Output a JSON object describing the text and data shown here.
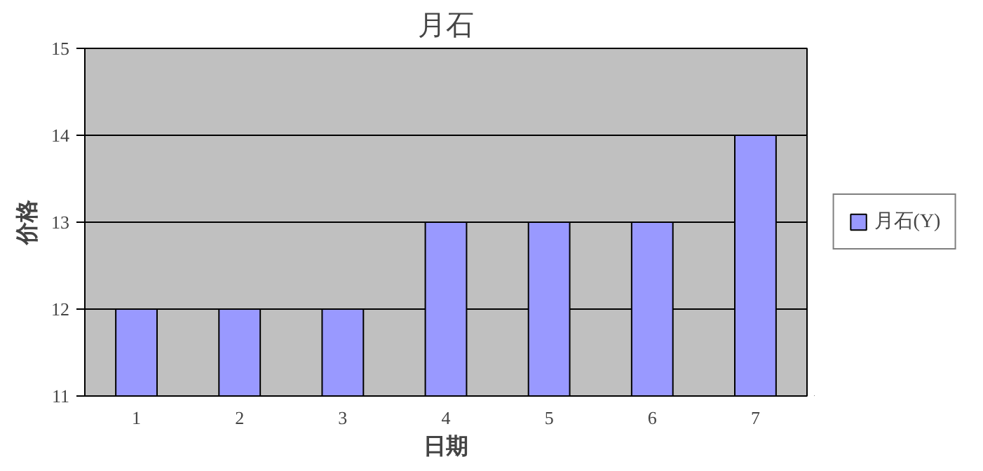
{
  "chart_data": {
    "type": "bar",
    "title": "月石",
    "xlabel": "日期",
    "ylabel": "价格",
    "categories": [
      "1",
      "2",
      "3",
      "4",
      "5",
      "6",
      "7"
    ],
    "series": [
      {
        "name": "月石(Y)",
        "color": "#9999ff",
        "values": [
          12,
          12,
          12,
          13,
          13,
          13,
          14
        ]
      }
    ],
    "ylim": [
      11,
      15
    ],
    "yticks": [
      11,
      12,
      13,
      14,
      15
    ],
    "grid": "y",
    "legend": "right"
  }
}
